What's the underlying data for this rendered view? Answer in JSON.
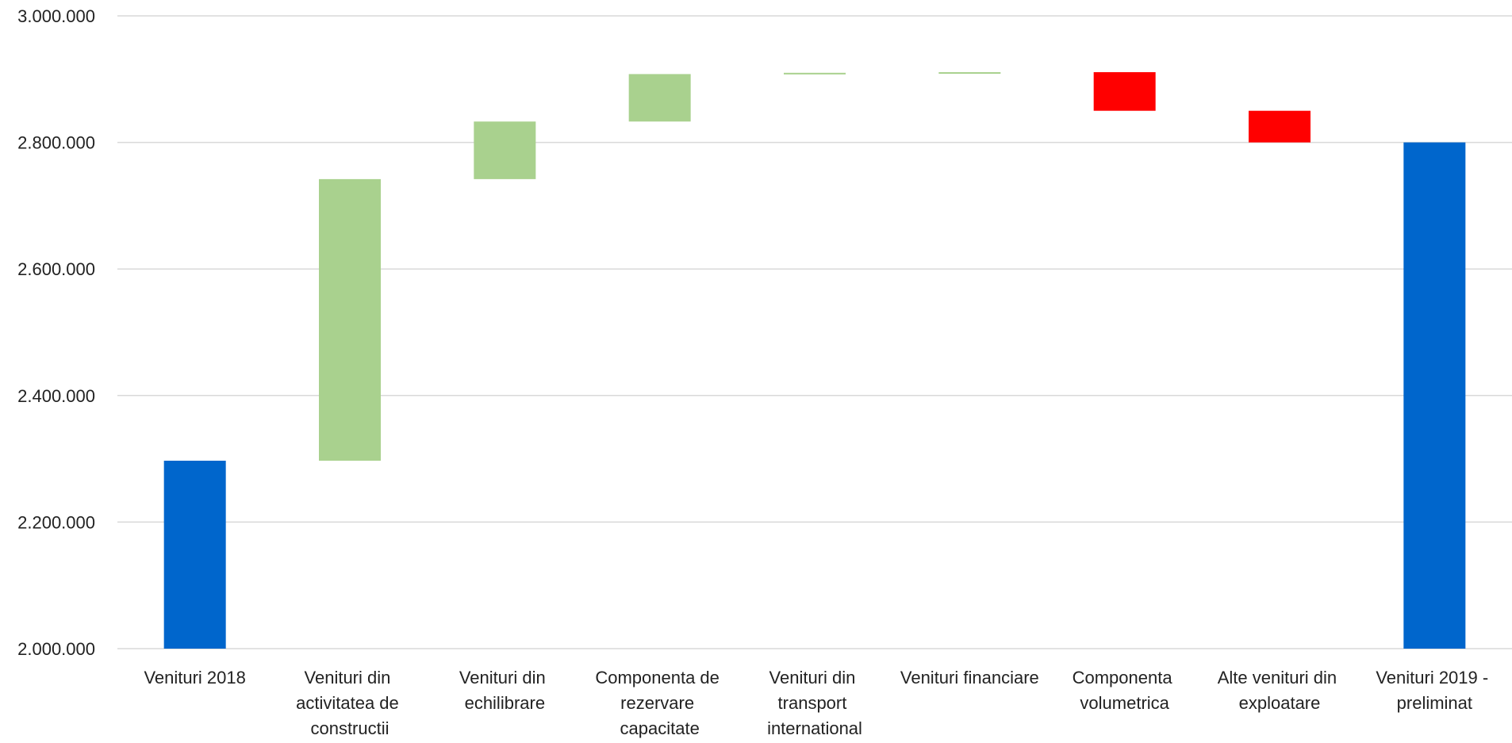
{
  "chart_data": {
    "type": "waterfall",
    "categories": [
      "Venituri 2018",
      "Venituri din activitatea de constructii",
      "Venituri din echilibrare",
      "Componenta de rezervare capacitate",
      "Venituri din transport international",
      "Venituri financiare",
      "Componenta volumetrica",
      "Alte venituri din exploatare",
      "Venituri 2019 - preliminat"
    ],
    "values": [
      2297000,
      445000,
      91000,
      75000,
      2000,
      1000,
      -61000,
      -50000,
      2800000
    ],
    "total_indices": [
      0,
      8
    ],
    "colors": {
      "total": "#0066cc",
      "increase": "#a9d18e",
      "decrease": "#ff0000"
    },
    "ylim": [
      2000000,
      3000000
    ],
    "yticks": [
      {
        "value": 2000000,
        "label": "2.000.000"
      },
      {
        "value": 2200000,
        "label": "2.200.000"
      },
      {
        "value": 2400000,
        "label": "2.400.000"
      },
      {
        "value": 2600000,
        "label": "2.600.000"
      },
      {
        "value": 2800000,
        "label": "2.800.000"
      },
      {
        "value": 3000000,
        "label": "3.000.000"
      }
    ],
    "grid": true
  }
}
